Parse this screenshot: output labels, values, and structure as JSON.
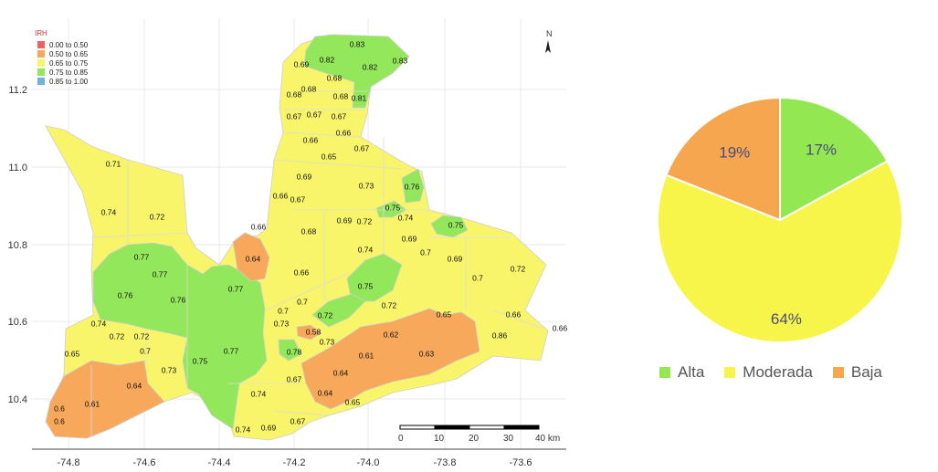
{
  "map": {
    "legend_title": "IRH",
    "legend": [
      {
        "label": "0.00 to 0.50",
        "color": "#f06060"
      },
      {
        "label": "0.50 to 0.65",
        "color": "#f7a85a"
      },
      {
        "label": "0.65 to 0.75",
        "color": "#f8f56a"
      },
      {
        "label": "0.75 to 0.85",
        "color": "#93e75a"
      },
      {
        "label": "0.85 to 1.00",
        "color": "#6fb4d6"
      }
    ],
    "north_label": "N",
    "scale_labels": [
      "0",
      "10",
      "20",
      "30",
      "40 km"
    ],
    "x_ticks": [
      "-74.8",
      "-74.6",
      "-74.4",
      "-74.2",
      "-74.0",
      "-73.8",
      "-73.6"
    ],
    "y_ticks": [
      "11.2",
      "11.0",
      "10.8",
      "10.6",
      "10.4"
    ],
    "region_values": [
      "0.83",
      "0.82",
      "0.82",
      "0.83",
      "0.69",
      "0.68",
      "0.68",
      "0.81",
      "0.68",
      "0.68",
      "0.67",
      "0.67",
      "0.67",
      "0.66",
      "0.66",
      "0.65",
      "0.67",
      "0.71",
      "0.69",
      "0.73",
      "0.76",
      "0.74",
      "0.72",
      "0.66",
      "0.67",
      "0.75",
      "0.69",
      "0.72",
      "0.74",
      "0.66",
      "0.68",
      "0.75",
      "0.77",
      "0.64",
      "0.74",
      "0.69",
      "0.7",
      "0.77",
      "0.69",
      "0.72",
      "0.76",
      "0.76",
      "0.77",
      "0.66",
      "0.7",
      "0.75",
      "0.7",
      "0.72",
      "0.7",
      "0.72",
      "0.74",
      "0.73",
      "0.72",
      "0.65",
      "0.66",
      "0.66",
      "0.72",
      "0.58",
      "0.73",
      "0.62",
      "0.86",
      "0.65",
      "0.7",
      "0.78",
      "0.61",
      "0.63",
      "0.75",
      "0.77",
      "0.73",
      "0.64",
      "0.67",
      "0.6",
      "0.61",
      "0.64",
      "0.74",
      "0.64",
      "0.65",
      "0.6",
      "0.74",
      "0.69",
      "0.67"
    ]
  },
  "chart_data": {
    "type": "pie",
    "slices": [
      {
        "name": "Alta",
        "value": 17,
        "label": "17%",
        "color": "#93e750"
      },
      {
        "name": "Moderada",
        "value": 64,
        "label": "64%",
        "color": "#f8f54a"
      },
      {
        "name": "Baja",
        "value": 19,
        "label": "19%",
        "color": "#f7a650"
      }
    ],
    "legend_placement": "bottom"
  }
}
